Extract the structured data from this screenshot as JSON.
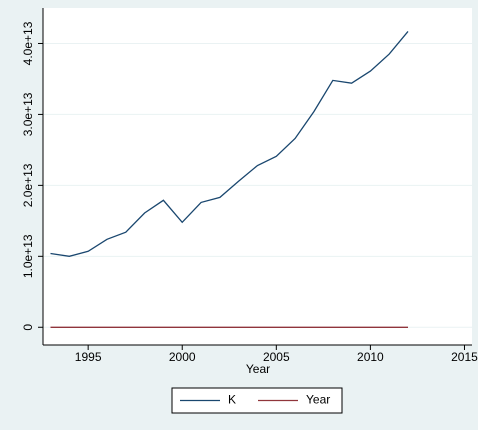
{
  "chart_data": {
    "type": "line",
    "x_label": "Year",
    "x": [
      1993,
      1994,
      1995,
      1996,
      1997,
      1998,
      1999,
      2000,
      2001,
      2002,
      2003,
      2004,
      2005,
      2006,
      2007,
      2008,
      2009,
      2010,
      2011,
      2012
    ],
    "series": [
      {
        "name": "K",
        "color": "#1a476f",
        "values": [
          10400000000000.0,
          10000000000000.0,
          10700000000000.0,
          12400000000000.0,
          13400000000000.0,
          16100000000000.0,
          17900000000000.0,
          14800000000000.0,
          17600000000000.0,
          18300000000000.0,
          20600000000000.0,
          22800000000000.0,
          24100000000000.0,
          26600000000000.0,
          30400000000000.0,
          34800000000000.0,
          34400000000000.0,
          36100000000000.0,
          38500000000000.0,
          41700000000000.0
        ]
      },
      {
        "name": "Year",
        "color": "#90353b",
        "values": [
          1993,
          1994,
          1995,
          1996,
          1997,
          1998,
          1999,
          2000,
          2001,
          2002,
          2003,
          2004,
          2005,
          2006,
          2007,
          2008,
          2009,
          2010,
          2011,
          2012
        ]
      }
    ],
    "xlim": [
      1992.6,
      2015.4
    ],
    "xticks": [
      1995,
      2000,
      2005,
      2010,
      2015
    ],
    "ylim": [
      -2500000000000.0,
      45000000000000.0
    ],
    "yticks": [
      0,
      {
        "value": 10000000000000.0,
        "label": "1.0e+13"
      },
      {
        "value": 20000000000000.0,
        "label": "2.0e+13"
      },
      {
        "value": 30000000000000.0,
        "label": "3.0e+13"
      },
      {
        "value": 40000000000000.0,
        "label": "4.0e+13"
      }
    ],
    "grid": true,
    "legend": "bottom"
  }
}
